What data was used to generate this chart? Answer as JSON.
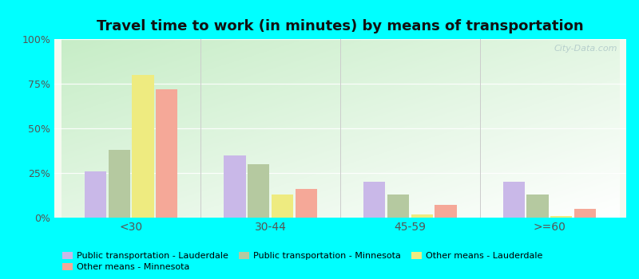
{
  "title": "Travel time to work (in minutes) by means of transportation",
  "categories": [
    "<30",
    "30-44",
    "45-59",
    ">=60"
  ],
  "series": {
    "Public transportation - Lauderdale": [
      26,
      35,
      20,
      20
    ],
    "Public transportation - Minnesota": [
      38,
      30,
      13,
      13
    ],
    "Other means - Lauderdale": [
      80,
      13,
      2,
      1
    ],
    "Other means - Minnesota": [
      72,
      16,
      7,
      5
    ]
  },
  "colors": {
    "Public transportation - Lauderdale": "#c9b8e8",
    "Public transportation - Minnesota": "#b5c9a0",
    "Other means - Lauderdale": "#eeeb80",
    "Other means - Minnesota": "#f5a898"
  },
  "ylim": [
    0,
    100
  ],
  "yticks": [
    0,
    25,
    50,
    75,
    100
  ],
  "ytick_labels": [
    "0%",
    "25%",
    "50%",
    "75%",
    "100%"
  ],
  "outer_background": "#00ffff",
  "title_fontsize": 13,
  "watermark": "City-Data.com"
}
